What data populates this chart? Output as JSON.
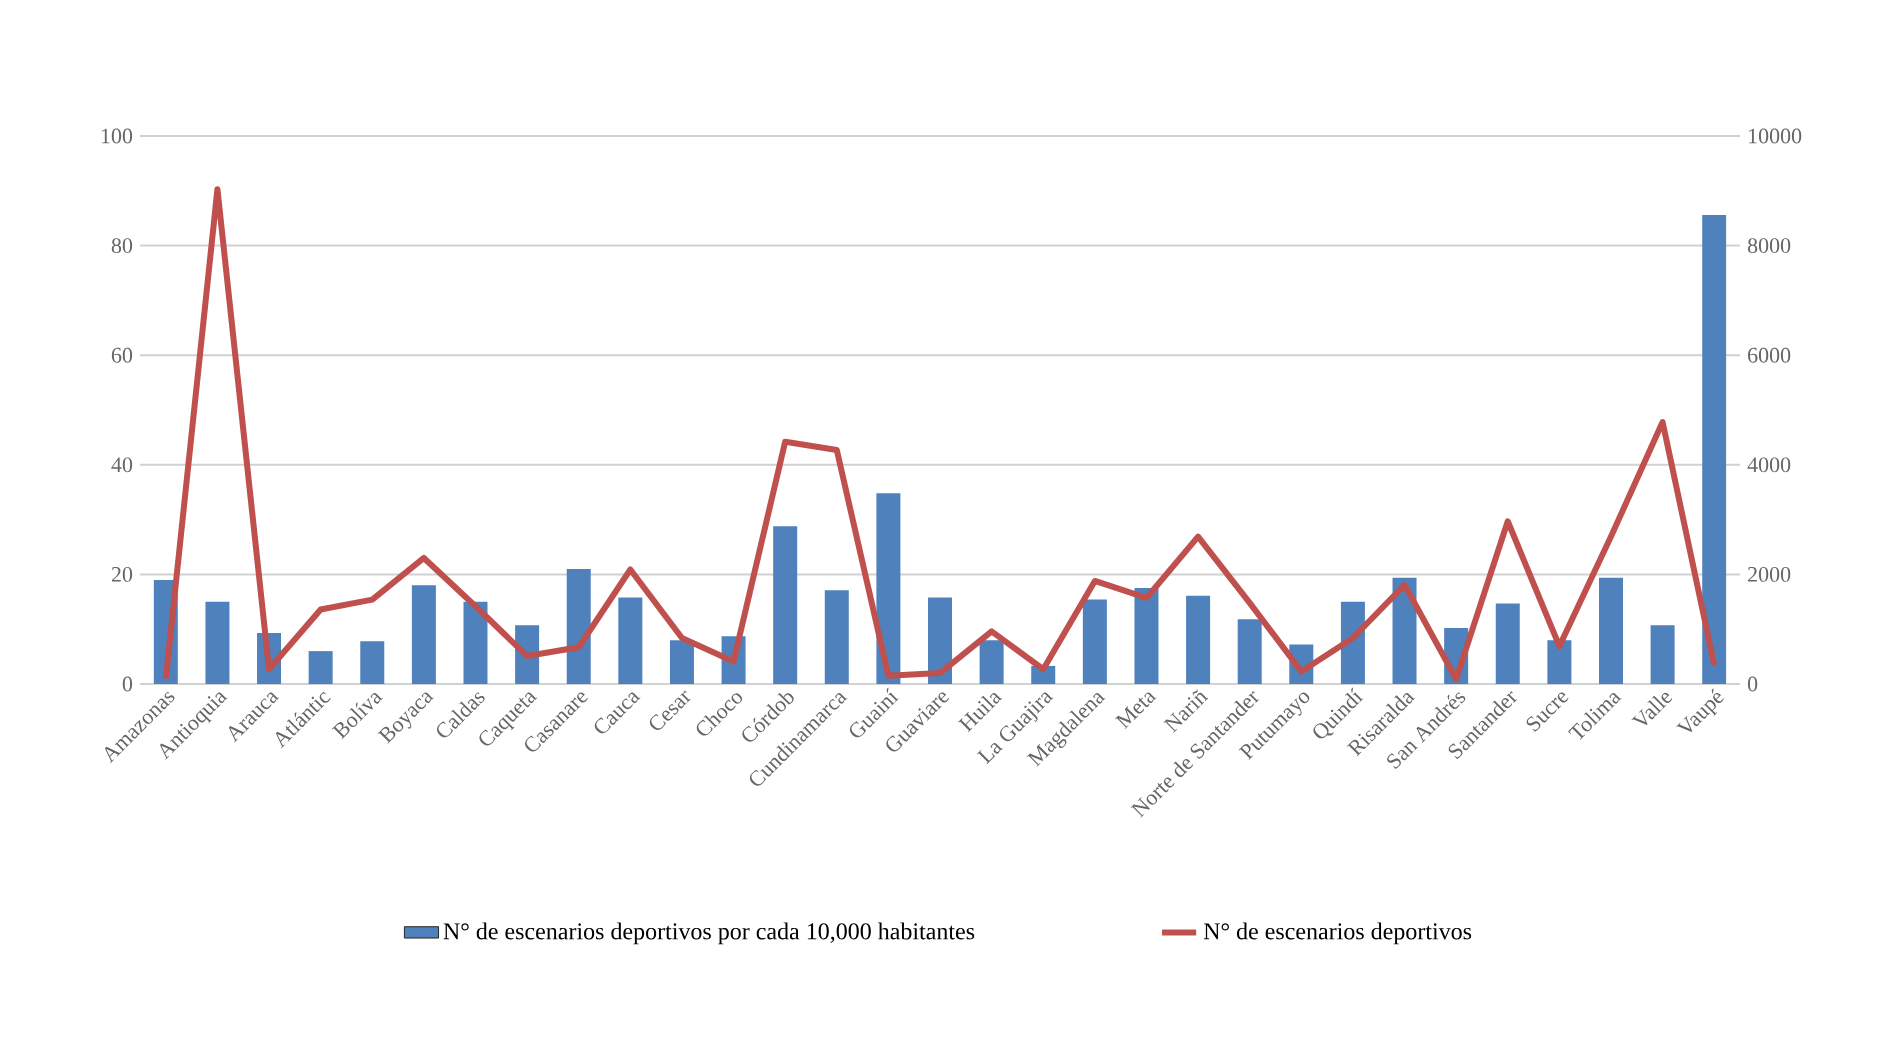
{
  "chart_data": {
    "type": "bar",
    "categories": [
      "Amazonas",
      "Antioquia",
      "Arauca",
      "Atlántic",
      "Bolíva",
      "Boyaca",
      "Caldas",
      "Caqueta",
      "Casanare",
      "Cauca",
      "Cesar",
      "Choco",
      "Córdob",
      "Cundinamarca",
      "Guainí",
      "Guaviare",
      "Huila",
      "La Guajira",
      "Magdalena",
      "Meta",
      "Nariñ",
      "Norte de Santander",
      "Putumayo",
      "Quindí",
      "Risaralda",
      "San Andrés",
      "Santander",
      "Sucre",
      "Tolima",
      "Valle",
      "Vaupé"
    ],
    "series": [
      {
        "name": "N° de escenarios deportivos por cada 10,000 habitantes",
        "color": "#4f81bd",
        "values": [
          19,
          15,
          9.3,
          6,
          7.8,
          18,
          15,
          10.7,
          21,
          15.8,
          8,
          8.7,
          28.8,
          17.1,
          34.8,
          15.8,
          8,
          3.3,
          15.4,
          17.5,
          16.1,
          11.8,
          7.2,
          15,
          19.4,
          10.2,
          14.7,
          8,
          19.4,
          10.7,
          85.6
        ]
      },
      {
        "name": "N° de escenarios deportivos",
        "color": "#c0504d",
        "type": "line",
        "axis": "y2",
        "values": [
          100,
          9030,
          270,
          1360,
          1540,
          2300,
          1420,
          510,
          670,
          2090,
          840,
          410,
          4420,
          4270,
          150,
          200,
          960,
          270,
          1880,
          1570,
          2690,
          1480,
          230,
          840,
          1810,
          90,
          2970,
          690,
          2690,
          4780,
          350
        ]
      }
    ],
    "ylim": [
      0,
      100
    ],
    "yticks": [
      0,
      20,
      40,
      60,
      80,
      100
    ],
    "y2lim": [
      0,
      10000
    ],
    "y2ticks": [
      0,
      2000,
      4000,
      6000,
      8000,
      10000
    ],
    "grid": "y",
    "legend": "bottom"
  }
}
